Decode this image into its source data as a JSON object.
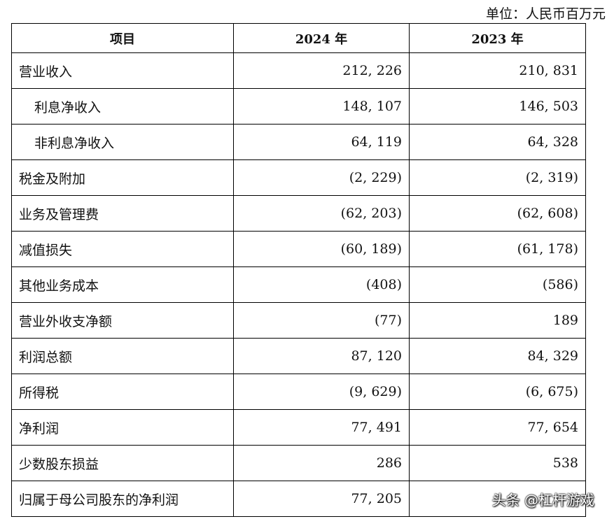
{
  "unit_label": "单位：人民币百万元",
  "headers": [
    "项目",
    "2024 年",
    "2023 年"
  ],
  "rows": [
    {
      "label": "营业收入",
      "y2024": "212, 226",
      "y2023": "210, 831",
      "indent": false
    },
    {
      "label": "利息净收入",
      "y2024": "148, 107",
      "y2023": "146, 503",
      "indent": true
    },
    {
      "label": "非利息净收入",
      "y2024": "64, 119",
      "y2023": "64, 328",
      "indent": true
    },
    {
      "label": "税金及附加",
      "y2024": "(2, 229)",
      "y2023": "(2, 319)",
      "indent": false
    },
    {
      "label": "业务及管理费",
      "y2024": "(62, 203)",
      "y2023": "(62, 608)",
      "indent": false
    },
    {
      "label": "减值损失",
      "y2024": "(60, 189)",
      "y2023": "(61, 178)",
      "indent": false
    },
    {
      "label": "其他业务成本",
      "y2024": "(408)",
      "y2023": "(586)",
      "indent": false
    },
    {
      "label": "营业外收支净额",
      "y2024": "(77)",
      "y2023": "189",
      "indent": false
    },
    {
      "label": "利润总额",
      "y2024": "87, 120",
      "y2023": "84, 329",
      "indent": false
    },
    {
      "label": "所得税",
      "y2024": "(9, 629)",
      "y2023": "(6, 675)",
      "indent": false
    },
    {
      "label": "净利润",
      "y2024": "77, 491",
      "y2023": "77, 654",
      "indent": false
    },
    {
      "label": "少数股东损益",
      "y2024": "286",
      "y2023": "538",
      "indent": false
    },
    {
      "label": "归属于母公司股东的净利润",
      "y2024": "77, 205",
      "y2023": "",
      "indent": false
    }
  ],
  "watermark": "头条 @杠杆游戏"
}
